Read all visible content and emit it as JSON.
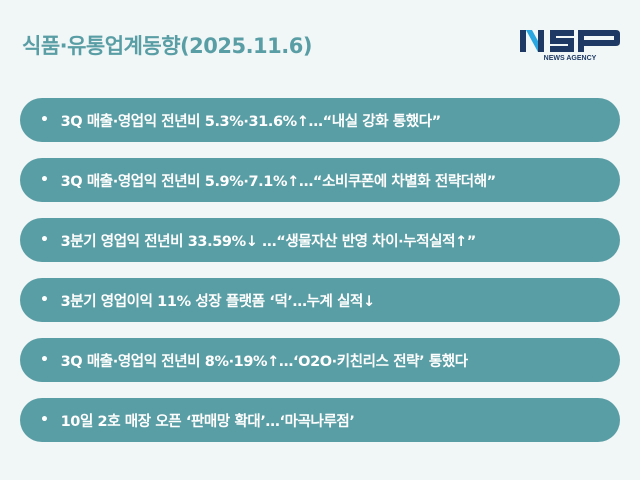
{
  "header": {
    "title": "식품·유통업계동향(2025.11.6)",
    "logo_text": "NSP",
    "logo_subtext": "NEWS AGENCY"
  },
  "colors": {
    "accent": "#5a9ea5",
    "background": "#f1f6f7",
    "logo": "#1e3a64",
    "logo_highlight": "#2aa7e0"
  },
  "items": [
    {
      "text": "3Q 매출·영업익 전년비 5.3%·31.6%↑…“내실 강화 통했다”"
    },
    {
      "text": "3Q 매출·영업익 전년비 5.9%·7.1%↑…“소비쿠폰에 차별화 전략더해”"
    },
    {
      "text": "3분기 영업익 전년비 33.59%↓ …“생물자산 반영 차이·누적실적↑”"
    },
    {
      "text": "3분기 영업이익 11% 성장 플랫폼 ‘덕’…누계 실적↓"
    },
    {
      "text": "3Q 매출·영업익 전년비 8%·19%↑…‘O2O·키친리스 전략’ 통했다"
    },
    {
      "text": "10일 2호 매장 오픈 ‘판매망 확대’…‘마곡나루점’"
    }
  ]
}
